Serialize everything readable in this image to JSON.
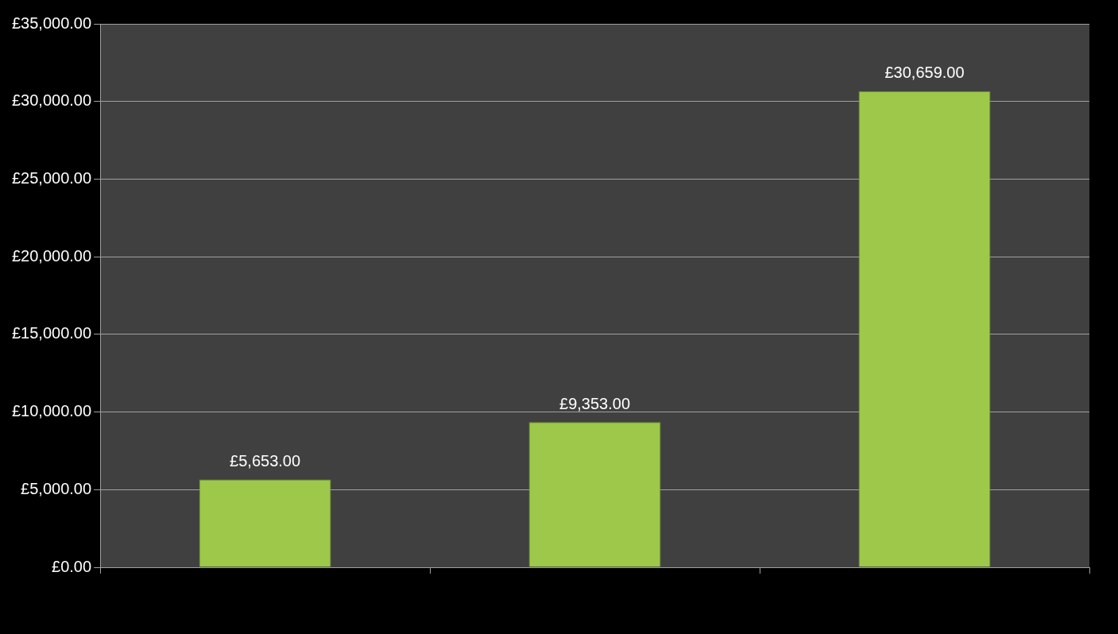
{
  "chart_data": {
    "type": "bar",
    "categories": [
      null,
      null,
      null
    ],
    "values": [
      5653,
      9353,
      30659
    ],
    "color": "#9dc84a",
    "value_labels": [
      "£5,653.00",
      "£9,353.00",
      "£30,659.00"
    ],
    "ylim": [
      0,
      35000
    ],
    "yticks": [
      {
        "value": 0,
        "label": "£0.00"
      },
      {
        "value": 5000,
        "label": "£5,000.00"
      },
      {
        "value": 10000,
        "label": "£10,000.00"
      },
      {
        "value": 15000,
        "label": "£15,000.00"
      },
      {
        "value": 20000,
        "label": "£20,000.00"
      },
      {
        "value": 25000,
        "label": "£25,000.00"
      },
      {
        "value": 30000,
        "label": "£30,000.00"
      },
      {
        "value": 35000,
        "label": "£35,000.00"
      }
    ],
    "grid": "y"
  }
}
